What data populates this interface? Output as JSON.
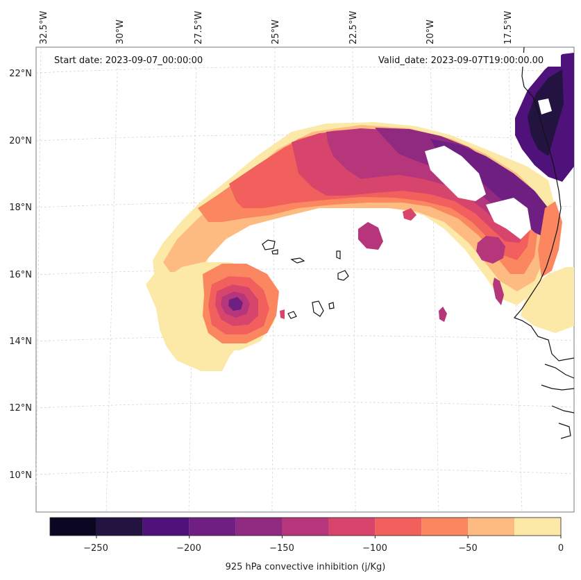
{
  "map": {
    "start_date": "Start date: 2023-09-07_00:00:00",
    "valid_date": "Valid_date: 2023-09-07T19:00:00.00",
    "lon_labels": [
      "32.5°W",
      "30°W",
      "27.5°W",
      "25°W",
      "22.5°W",
      "20°W",
      "17.5°W"
    ],
    "lat_labels": [
      "22°N",
      "20°N",
      "18°N",
      "16°N",
      "14°N",
      "12°N",
      "10°N"
    ]
  },
  "colorbar": {
    "label": "925 hPa convective inhibition (j/Kg)",
    "ticks": [
      "−250",
      "−200",
      "−150",
      "−100",
      "−50",
      "0"
    ],
    "levels": [
      -275,
      -250,
      -225,
      -200,
      -175,
      -150,
      -125,
      -100,
      -75,
      -50,
      -25,
      0
    ],
    "colors": [
      "#0b0722",
      "#231341",
      "#4f127b",
      "#6f1f81",
      "#8f2a80",
      "#b5367a",
      "#d8456c",
      "#f1605d",
      "#fb8761",
      "#febb81",
      "#fce9a8"
    ]
  }
}
